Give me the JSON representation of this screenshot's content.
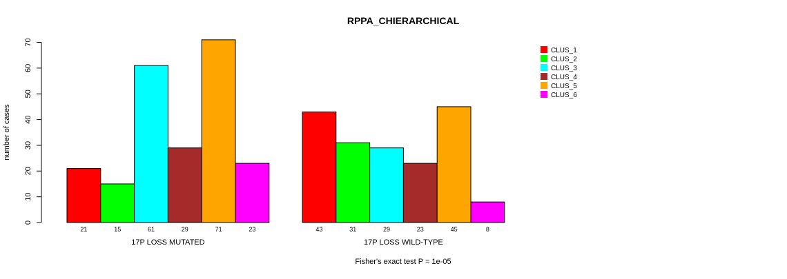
{
  "chart_data": {
    "type": "bar",
    "title": "RPPA_CHIERARCHICAL",
    "ylabel": "number of cases",
    "footnote": "Fisher's exact test P = 1e-05",
    "ylim": [
      0,
      70
    ],
    "yticks": [
      0,
      10,
      20,
      30,
      40,
      50,
      60,
      70
    ],
    "groups": [
      "17P LOSS MUTATED",
      "17P LOSS WILD-TYPE"
    ],
    "legend_position": "top-right",
    "grid": false,
    "series": [
      {
        "name": "CLUS_1",
        "color": "#ff0000",
        "values": [
          21,
          43
        ]
      },
      {
        "name": "CLUS_2",
        "color": "#00ff00",
        "values": [
          15,
          31
        ]
      },
      {
        "name": "CLUS_3",
        "color": "#00ffff",
        "values": [
          61,
          29
        ]
      },
      {
        "name": "CLUS_4",
        "color": "#a52a2a",
        "values": [
          29,
          23
        ]
      },
      {
        "name": "CLUS_5",
        "color": "#ffa500",
        "values": [
          71,
          45
        ]
      },
      {
        "name": "CLUS_6",
        "color": "#ff00ff",
        "values": [
          23,
          8
        ]
      }
    ]
  }
}
